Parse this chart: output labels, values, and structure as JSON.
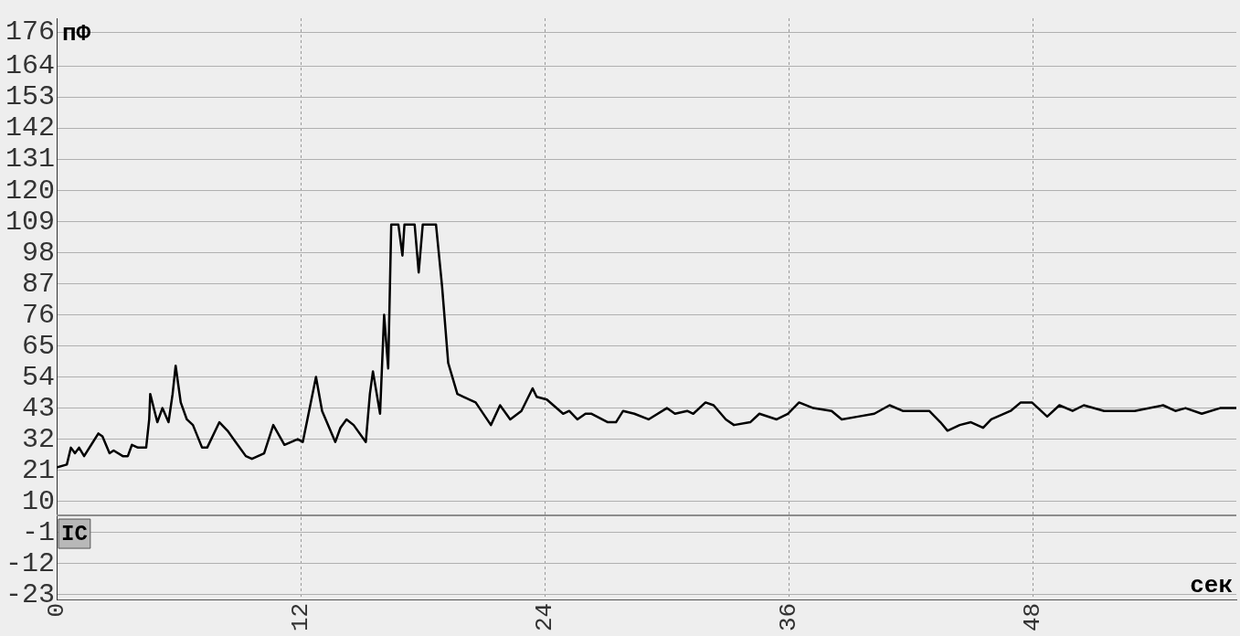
{
  "chart_data": {
    "type": "line",
    "xlabel": "сек",
    "ylabel": "пФ",
    "annotations": [
      "IC"
    ],
    "x": [
      0,
      0.5,
      0.7,
      0.9,
      1.1,
      1.35,
      1.7,
      2.05,
      2.25,
      2.6,
      2.8,
      3.25,
      3.5,
      3.7,
      4.0,
      4.4,
      4.55,
      4.6,
      4.95,
      5.2,
      5.5,
      5.7,
      5.85,
      6.1,
      6.4,
      6.7,
      7.15,
      7.4,
      8.0,
      8.4,
      8.8,
      9.3,
      9.6,
      10.2,
      10.65,
      11.2,
      11.85,
      12.1,
      12.3,
      12.75,
      13.05,
      13.7,
      13.95,
      14.25,
      14.6,
      15.2,
      15.4,
      15.55,
      15.9,
      16.1,
      16.3,
      16.45,
      16.8,
      17.0,
      17.1,
      17.6,
      17.8,
      18.0,
      18.65,
      18.95,
      19.25,
      19.7,
      20.3,
      20.6,
      21.35,
      21.8,
      22.3,
      22.85,
      23.4,
      23.6,
      24.1,
      24.9,
      25.2,
      25.6,
      26.0,
      26.3,
      27.1,
      27.5,
      27.85,
      28.4,
      29.1,
      30.0,
      30.4,
      31.0,
      31.3,
      31.9,
      32.3,
      32.9,
      33.3,
      34.1,
      34.55,
      35.4,
      35.95,
      36.5,
      37.2,
      38.1,
      38.6,
      39.4,
      40.2,
      40.95,
      41.6,
      42.3,
      42.9,
      43.45,
      43.8,
      44.4,
      44.95,
      45.55,
      45.95,
      46.9,
      47.4,
      47.95,
      48.7,
      49.3,
      49.95,
      50.5,
      51.5,
      52.3,
      53.0,
      54.4,
      55.0,
      55.5,
      56.3,
      57.2,
      58.0
    ],
    "series": [
      {
        "color": "#000000",
        "values": [
          22,
          23,
          29,
          27,
          29,
          26,
          30,
          34,
          33,
          27,
          28,
          26,
          26,
          30,
          29,
          29,
          39,
          48,
          38,
          43,
          38,
          48,
          58,
          45,
          39,
          37,
          29,
          29,
          38,
          35,
          31,
          26,
          25,
          27,
          37,
          30,
          32,
          31,
          38,
          54,
          42,
          31,
          36,
          39,
          37,
          31,
          48,
          56,
          41,
          76,
          57,
          108,
          108,
          97,
          108,
          108,
          91,
          108,
          108,
          86,
          59,
          48,
          46,
          45,
          37,
          44,
          39,
          42,
          50,
          47,
          46,
          41,
          42,
          39,
          41,
          41,
          38,
          38,
          42,
          41,
          39,
          43,
          41,
          42,
          41,
          45,
          44,
          39,
          37,
          38,
          41,
          39,
          41,
          45,
          43,
          42,
          39,
          40,
          41,
          44,
          42,
          42,
          42,
          38,
          35,
          37,
          38,
          36,
          39,
          42,
          45,
          45,
          40,
          44,
          42,
          44,
          42,
          42,
          42,
          44,
          42,
          43,
          41,
          43,
          43
        ]
      }
    ],
    "xlim": [
      0,
      58
    ],
    "xticks": [
      0,
      12,
      24,
      36,
      48
    ],
    "ylim": [
      -25,
      181
    ],
    "yticks": [
      -23,
      -12,
      -1,
      10,
      21,
      32,
      43,
      54,
      65,
      76,
      87,
      98,
      109,
      120,
      131,
      142,
      153,
      164,
      176
    ],
    "ref_lines": [
      {
        "axis": "y",
        "value": 5,
        "color": "#8c8c8c",
        "line_style": "solid"
      }
    ],
    "grid": true,
    "legend": false,
    "marker": "none",
    "line_style": "solid"
  }
}
